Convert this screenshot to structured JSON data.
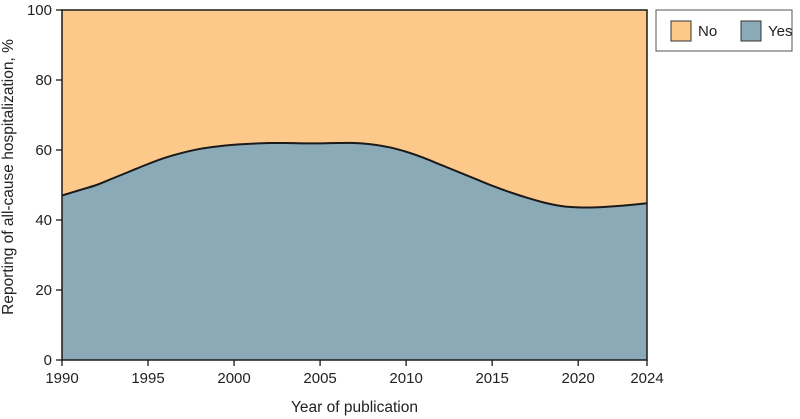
{
  "chart_data": {
    "type": "area",
    "stacked": true,
    "x": [
      1990,
      1991,
      1992,
      1993,
      1994,
      1995,
      1996,
      1997,
      1998,
      1999,
      2000,
      2001,
      2002,
      2003,
      2004,
      2005,
      2006,
      2007,
      2008,
      2009,
      2010,
      2011,
      2012,
      2013,
      2014,
      2015,
      2016,
      2017,
      2018,
      2019,
      2020,
      2021,
      2022,
      2023,
      2024
    ],
    "series": [
      {
        "name": "Yes",
        "color": "#8aaab8",
        "values": [
          47,
          48.5,
          50,
          52,
          54,
          56,
          57.8,
          59.2,
          60.3,
          61,
          61.5,
          61.8,
          62,
          62,
          61.9,
          61.9,
          62,
          62,
          61.6,
          60.8,
          59.5,
          57.8,
          55.8,
          53.8,
          51.8,
          49.8,
          48,
          46.4,
          45,
          44,
          43.6,
          43.6,
          43.9,
          44.3,
          44.8
        ]
      },
      {
        "name": "No",
        "color": "#fdc98a",
        "values": [
          53,
          51.5,
          50,
          48,
          46,
          44,
          42.2,
          40.8,
          39.7,
          39,
          38.5,
          38.2,
          38,
          38,
          38.1,
          38.1,
          38,
          38,
          38.4,
          39.2,
          40.5,
          42.2,
          44.2,
          46.2,
          48.2,
          50.2,
          52,
          53.6,
          55,
          56,
          56.4,
          56.4,
          56.1,
          55.7,
          55.2
        ]
      }
    ],
    "xticks": [
      1990,
      1995,
      2000,
      2005,
      2010,
      2015,
      2020,
      2024
    ],
    "yticks": [
      0,
      20,
      40,
      60,
      80,
      100
    ],
    "xlim": [
      1990,
      2024
    ],
    "ylim": [
      0,
      100
    ],
    "xlabel": "Year of publication",
    "ylabel": "Reporting of all-cause hospitalization, %",
    "legend": {
      "position": "top-right",
      "entries": [
        {
          "label": "No",
          "color": "#fdc98a"
        },
        {
          "label": "Yes",
          "color": "#8aaab8"
        }
      ]
    },
    "grid": false
  }
}
